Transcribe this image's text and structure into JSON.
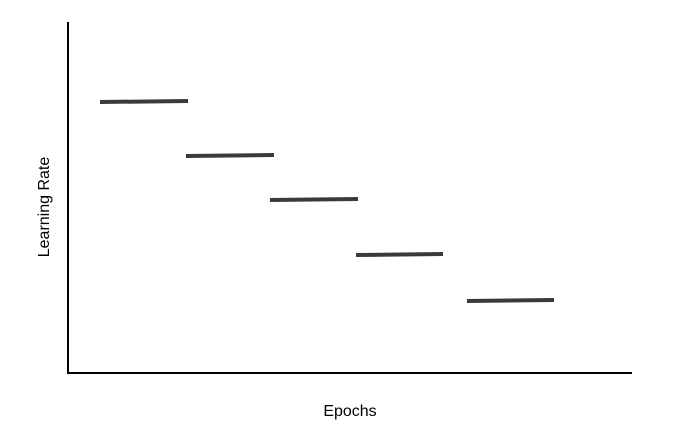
{
  "axes": {
    "x_label": "Epochs",
    "y_label": "Learning Rate"
  },
  "colors": {
    "axis": "#000000",
    "segment": "#3a3a3a"
  },
  "diagram": {
    "kind": "step-decay",
    "segment_count": 5
  }
}
